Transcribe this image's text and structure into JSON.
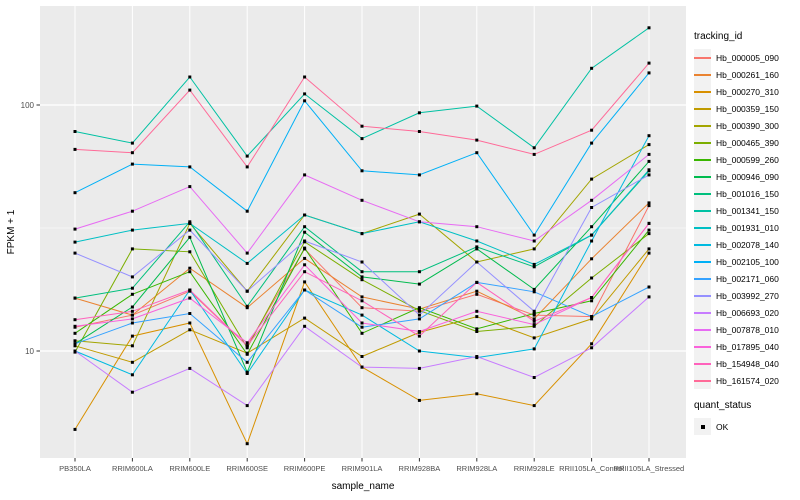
{
  "figure": {
    "y_axis_title": "FPKM + 1",
    "x_axis_title": "sample_name",
    "series_legend_title": "tracking_id",
    "quant_legend_title": "quant_status",
    "quant_legend_value": "OK",
    "panel_bg": "#EBEBEB",
    "grid_color": "#FFFFFF",
    "tick_text_color": "#4D4D4D",
    "marker_color": "#000000"
  },
  "chart_data": {
    "type": "line",
    "title": "",
    "xlabel": "sample_name",
    "ylabel": "FPKM + 1",
    "y_scale": "log10",
    "y_ticks": [
      10,
      100
    ],
    "ylim_approx": [
      4,
      230
    ],
    "grid": "on",
    "legend_position": "right",
    "legend_title": "tracking_id",
    "marker": "black-square",
    "quant_status": {
      "title": "quant_status",
      "items": [
        "OK"
      ]
    },
    "categories": [
      "PB350LA",
      "RRIM600LA",
      "RRIM600LE",
      "RRIM600SE",
      "RRIM600PE",
      "RRIM901LA",
      "RRIM928BA",
      "RRIM928LA",
      "RRIM928LE",
      "RRII105LA_Control",
      "RRII105LA_Stressed"
    ],
    "series": [
      {
        "name": "Hb_000005_090",
        "color": "#F8766D",
        "values": [
          12.5,
          14,
          17.5,
          10.5,
          26,
          15,
          14.5,
          17,
          14,
          13.8,
          39
        ]
      },
      {
        "name": "Hb_000261_160",
        "color": "#EA8331",
        "values": [
          16.4,
          14,
          21.7,
          15,
          23.8,
          16.6,
          14.8,
          17.5,
          13.5,
          23.7,
          40
        ]
      },
      {
        "name": "Hb_000270_310",
        "color": "#D89000",
        "values": [
          4.8,
          11.5,
          13,
          4.2,
          19.1,
          8.6,
          6.3,
          6.7,
          6,
          10.7,
          25
        ]
      },
      {
        "name": "Hb_000359_150",
        "color": "#C09B00",
        "values": [
          10.5,
          9,
          12.2,
          9.8,
          13.6,
          9.5,
          11.9,
          13.8,
          11.3,
          13.5,
          26
        ]
      },
      {
        "name": "Hb_000390_300",
        "color": "#A3A500",
        "values": [
          11,
          10.5,
          33,
          17.5,
          35.7,
          30,
          36,
          23,
          26,
          50,
          69
        ]
      },
      {
        "name": "Hb_000465_390",
        "color": "#7CAE00",
        "values": [
          9.9,
          26,
          25.3,
          10.3,
          27.8,
          19.5,
          14.6,
          12,
          12.6,
          19.8,
          30
        ]
      },
      {
        "name": "Hb_000599_260",
        "color": "#39B600",
        "values": [
          11.8,
          17,
          21,
          9.7,
          26.2,
          11.8,
          15,
          12.3,
          14.2,
          16,
          31
        ]
      },
      {
        "name": "Hb_000946_090",
        "color": "#00BB4E",
        "values": [
          10.7,
          15.1,
          29,
          8.2,
          30.4,
          20,
          18.7,
          26,
          17.8,
          32,
          59
        ]
      },
      {
        "name": "Hb_001016_150",
        "color": "#00BF7D",
        "values": [
          16.4,
          18,
          33.5,
          15.2,
          32,
          21,
          21,
          26.5,
          22,
          29.6,
          54
        ]
      },
      {
        "name": "Hb_001341_150",
        "color": "#00C1A3",
        "values": [
          78,
          70,
          130,
          62,
          111,
          73,
          93,
          99,
          67,
          141,
          206
        ]
      },
      {
        "name": "Hb_001931_010",
        "color": "#00BFC4",
        "values": [
          27.7,
          31,
          33,
          22.7,
          35.7,
          30,
          33.5,
          28,
          22.5,
          29.6,
          54.5
        ]
      },
      {
        "name": "Hb_002078_140",
        "color": "#00BAE0",
        "values": [
          10,
          8,
          17.7,
          8.1,
          17.7,
          14,
          10,
          9.4,
          10.2,
          28,
          75
        ]
      },
      {
        "name": "Hb_002105_100",
        "color": "#00B0F6",
        "values": [
          44,
          57.5,
          56,
          37,
          104,
          54,
          52,
          64,
          29.6,
          70,
          135
        ]
      },
      {
        "name": "Hb_002171_060",
        "color": "#35A2FF",
        "values": [
          10.7,
          13,
          14.2,
          9,
          17.7,
          12.5,
          13.5,
          19,
          17.4,
          13.8,
          18.2
        ]
      },
      {
        "name": "Hb_003992_270",
        "color": "#9590FF",
        "values": [
          25,
          20,
          31,
          17.5,
          28,
          23,
          14,
          23,
          14.5,
          38.3,
          52
        ]
      },
      {
        "name": "Hb_006693_020",
        "color": "#C77CFF",
        "values": [
          10,
          6.8,
          8.5,
          6,
          12.6,
          8.6,
          8.5,
          9.5,
          7.8,
          10.3,
          16.6
        ]
      },
      {
        "name": "Hb_007878_010",
        "color": "#E76BF3",
        "values": [
          31.3,
          37,
          46.6,
          25,
          52,
          41,
          33.5,
          32,
          28,
          41,
          63
        ]
      },
      {
        "name": "Hb_017895_040",
        "color": "#FA62DB",
        "values": [
          12.6,
          13.5,
          16.4,
          10.8,
          22.4,
          13,
          12,
          14.5,
          12.8,
          16.5,
          33
        ]
      },
      {
        "name": "Hb_154948_040",
        "color": "#FF62BC",
        "values": [
          13.4,
          14.5,
          17.7,
          10.5,
          21,
          16,
          11.5,
          19,
          13.2,
          16.5,
          33
        ]
      },
      {
        "name": "Hb_161574_020",
        "color": "#FF6A98",
        "values": [
          66,
          64,
          115,
          56,
          130,
          82,
          78,
          72,
          63,
          79,
          148
        ]
      }
    ]
  }
}
